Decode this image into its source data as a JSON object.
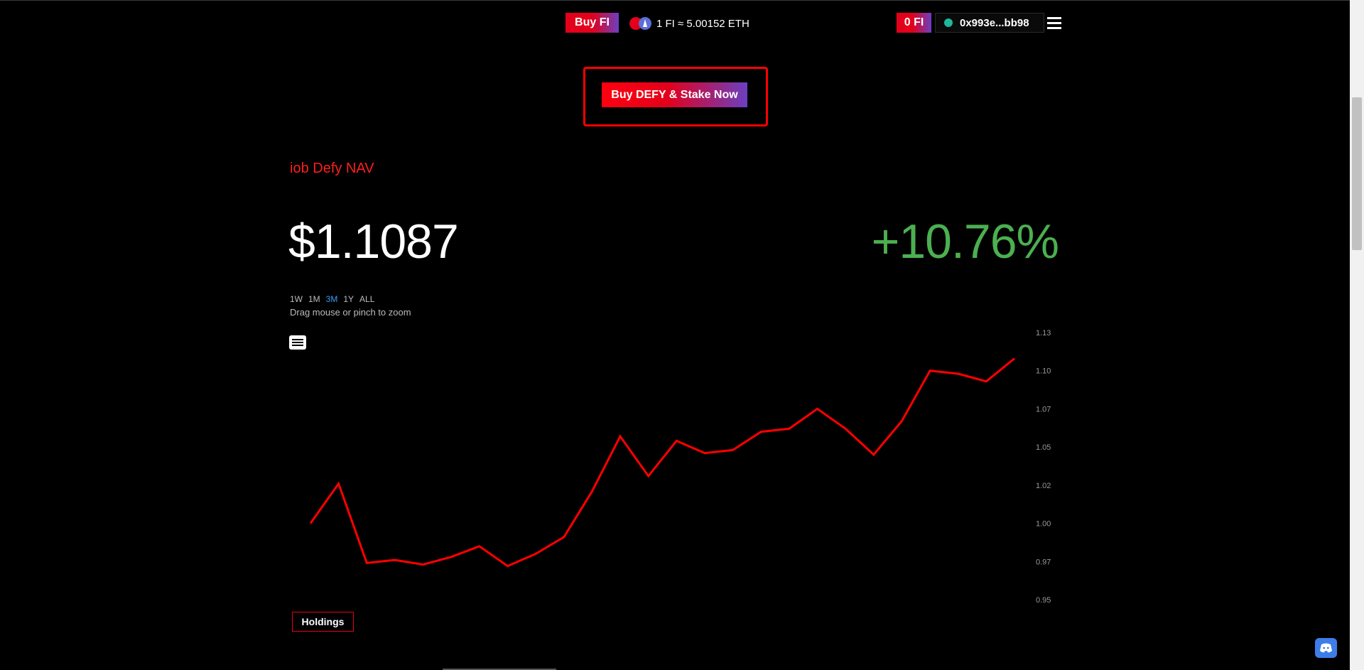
{
  "header": {
    "buy_fi_label": "Buy FI",
    "rate_text": "1 FI ≈ 5.00152 ETH",
    "fi_balance": "0 FI",
    "wallet_address": "0x993e...bb98"
  },
  "cta": {
    "label": "Buy DEFY & Stake Now"
  },
  "nav": {
    "title": "iob Defy NAV",
    "price": "$1.1087",
    "change": "+10.76%",
    "ranges": [
      "1W",
      "1M",
      "3M",
      "1Y",
      "ALL"
    ],
    "active_range": "3M",
    "zoom_hint": "Drag mouse or pinch to zoom"
  },
  "chart_data": {
    "type": "line",
    "title": "",
    "xlabel": "",
    "ylabel": "",
    "ylim": [
      0.95,
      1.13
    ],
    "yticks": [
      "1.13",
      "1.10",
      "1.07",
      "1.05",
      "1.02",
      "1.00",
      "0.97",
      "0.95"
    ],
    "ytick_values": [
      1.125,
      1.1,
      1.075,
      1.05,
      1.025,
      1.0,
      0.975,
      0.95
    ],
    "grid": false,
    "series": [
      {
        "color": "#ff0000",
        "values": [
          1.0,
          1.026,
          0.974,
          0.976,
          0.973,
          0.978,
          0.985,
          0.972,
          0.98,
          0.991,
          1.021,
          1.057,
          1.031,
          1.054,
          1.046,
          1.048,
          1.06,
          1.062,
          1.075,
          1.062,
          1.045,
          1.067,
          1.1,
          1.098,
          1.093,
          1.108
        ]
      }
    ]
  },
  "holdings_label": "Holdings",
  "colors": {
    "accent_red": "#e3001b",
    "accent_purple": "#6b3fc2",
    "positive_green": "#4caf50",
    "active_range_blue": "#3b9cff"
  },
  "icons": {
    "logo": "iob-logo-icon",
    "menu": "hamburger-menu-icon",
    "chart_menu": "chart-context-menu-icon",
    "discord": "discord-icon"
  }
}
